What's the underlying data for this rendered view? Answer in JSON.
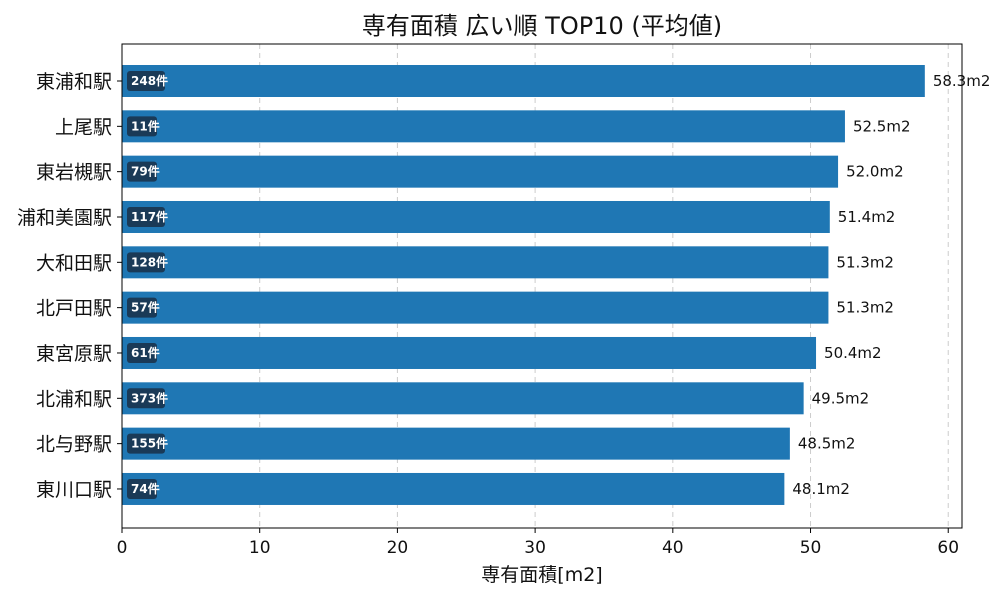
{
  "chart_data": {
    "type": "bar",
    "orientation": "horizontal",
    "title": "専有面積 広い順 TOP10 (平均値)",
    "xlabel": "専有面積[m2]",
    "ylabel": "",
    "xlim": [
      0,
      61
    ],
    "xticks": [
      0,
      10,
      20,
      30,
      40,
      50,
      60
    ],
    "grid": "vertical-dashed",
    "bar_color": "#1f77b4",
    "badge_color": "#1a3a57",
    "value_suffix": "m2",
    "categories": [
      "東浦和駅",
      "上尾駅",
      "東岩槻駅",
      "浦和美園駅",
      "大和田駅",
      "北戸田駅",
      "東宮原駅",
      "北浦和駅",
      "北与野駅",
      "東川口駅"
    ],
    "values": [
      58.3,
      52.5,
      52.0,
      51.4,
      51.3,
      51.3,
      50.4,
      49.5,
      48.5,
      48.1
    ],
    "value_labels": [
      "58.3m2",
      "52.5m2",
      "52.0m2",
      "51.4m2",
      "51.3m2",
      "51.3m2",
      "50.4m2",
      "49.5m2",
      "48.5m2",
      "48.1m2"
    ],
    "counts": [
      "248件",
      "11件",
      "79件",
      "117件",
      "128件",
      "57件",
      "61件",
      "373件",
      "155件",
      "74件"
    ]
  }
}
